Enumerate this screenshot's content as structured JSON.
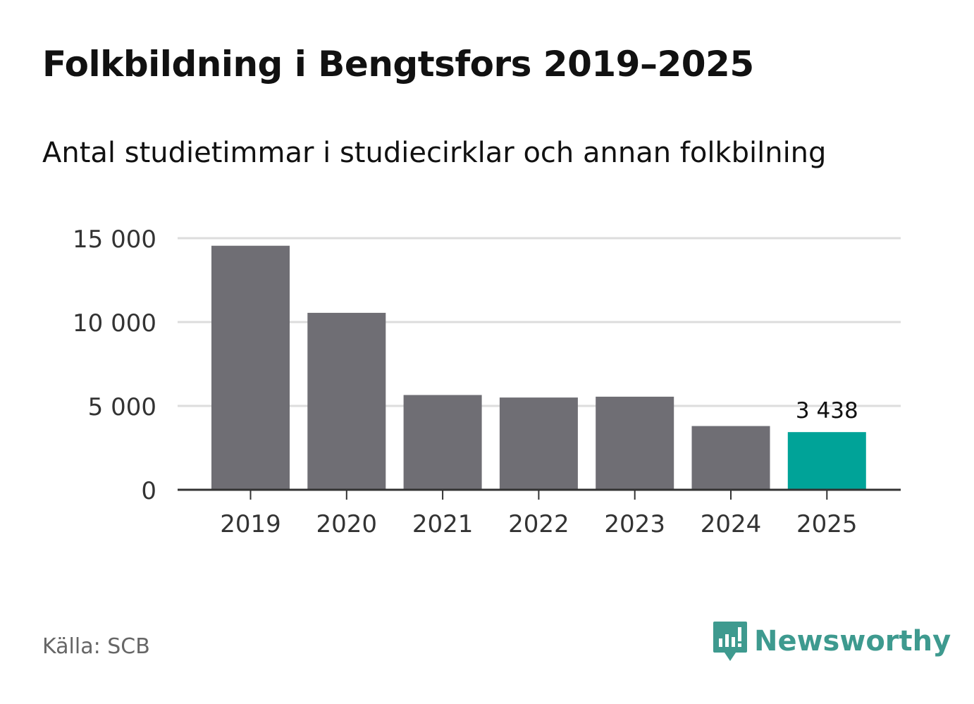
{
  "title": "Folkbildning i Bengtsfors 2019–2025",
  "subtitle": "Antal studietimmar i studiecirklar och annan folkbilning",
  "source": "Källa: SCB",
  "brand": {
    "name": "Newsworthy",
    "color": "#3e9a8f"
  },
  "colors": {
    "bar": "#6f6e74",
    "highlight": "#00a398",
    "grid": "#dddddd",
    "axis": "#333333",
    "text": "#333333"
  },
  "chart_data": {
    "type": "bar",
    "categories": [
      "2019",
      "2020",
      "2021",
      "2022",
      "2023",
      "2024",
      "2025"
    ],
    "values": [
      14550,
      10550,
      5650,
      5500,
      5550,
      3800,
      3438
    ],
    "highlight_index": 6,
    "data_labels": [
      {
        "index": 6,
        "text": "3 438"
      }
    ],
    "y_ticks": [
      {
        "value": 0,
        "label": "0"
      },
      {
        "value": 5000,
        "label": "5 000"
      },
      {
        "value": 10000,
        "label": "10 000"
      },
      {
        "value": 15000,
        "label": "15 000"
      }
    ],
    "ylim": [
      0,
      15000
    ],
    "title": "Folkbildning i Bengtsfors 2019–2025",
    "xlabel": "",
    "ylabel": "",
    "grid": true
  }
}
